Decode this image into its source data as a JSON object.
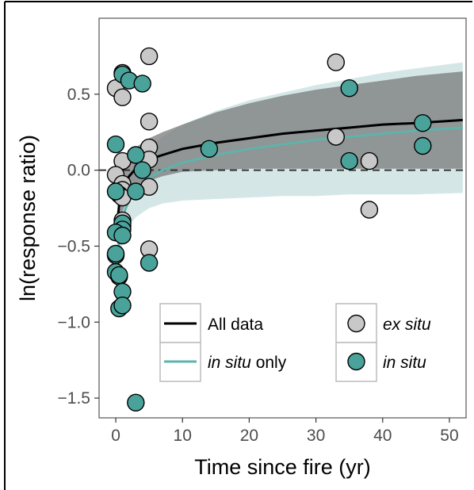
{
  "chart_data": {
    "type": "scatter",
    "xlabel": "Time since fire (yr)",
    "ylabel": "ln(response ratio)",
    "xlim": [
      -2.5,
      52.5
    ],
    "ylim": [
      -1.63,
      1.0
    ],
    "xticks": [
      0,
      10,
      20,
      30,
      40,
      50
    ],
    "yticks": [
      -1.5,
      -1.0,
      -0.5,
      0.0,
      0.5
    ],
    "xtick_labels": [
      "0",
      "10",
      "20",
      "30",
      "40",
      "50"
    ],
    "ytick_labels": [
      "−1.5",
      "−1.0",
      "−0.5",
      "0.0",
      "0.5"
    ],
    "grid": false,
    "reference_line": {
      "y": 0,
      "style": "dashed"
    },
    "colors": {
      "all_data_line": "#000000",
      "in_situ_line": "#5fb3ac",
      "all_data_ribbon": "#7a7a7a",
      "in_situ_ribbon": "#a9cfcd",
      "ex_situ_point": "#c8c8c8",
      "in_situ_point": "#4aa39a"
    },
    "fits": [
      {
        "name": "All data",
        "x": [
          0.3,
          0.5,
          0.7,
          1,
          1.5,
          2,
          3,
          4,
          5,
          7,
          10,
          15,
          20,
          25,
          30,
          35,
          40,
          45,
          52
        ],
        "y": [
          -0.31,
          -0.23,
          -0.18,
          -0.13,
          -0.08,
          -0.04,
          0.01,
          0.04,
          0.07,
          0.1,
          0.14,
          0.18,
          0.21,
          0.24,
          0.26,
          0.28,
          0.3,
          0.31,
          0.33
        ],
        "lower": [
          -0.45,
          -0.37,
          -0.32,
          -0.27,
          -0.22,
          -0.18,
          -0.13,
          -0.1,
          -0.07,
          -0.04,
          -0.01,
          0.0,
          0.01,
          0.01,
          0.01,
          0.01,
          0.01,
          0.01,
          0.01
        ],
        "upper": [
          -0.17,
          -0.09,
          -0.04,
          0.01,
          0.06,
          0.1,
          0.15,
          0.18,
          0.21,
          0.25,
          0.3,
          0.38,
          0.44,
          0.49,
          0.53,
          0.56,
          0.59,
          0.62,
          0.65
        ]
      },
      {
        "name": "in situ only",
        "x": [
          0.3,
          0.5,
          0.7,
          1,
          1.5,
          2,
          3,
          4,
          5,
          7,
          10,
          15,
          20,
          25,
          30,
          35,
          40,
          45,
          52
        ],
        "y": [
          -0.55,
          -0.45,
          -0.38,
          -0.31,
          -0.25,
          -0.2,
          -0.13,
          -0.09,
          -0.05,
          0.0,
          0.05,
          0.1,
          0.14,
          0.17,
          0.2,
          0.22,
          0.24,
          0.26,
          0.28
        ],
        "lower": [
          -0.72,
          -0.62,
          -0.55,
          -0.48,
          -0.42,
          -0.37,
          -0.31,
          -0.28,
          -0.25,
          -0.22,
          -0.2,
          -0.19,
          -0.18,
          -0.17,
          -0.17,
          -0.16,
          -0.16,
          -0.16,
          -0.15
        ],
        "upper": [
          -0.38,
          -0.28,
          -0.21,
          -0.14,
          -0.08,
          -0.03,
          0.05,
          0.1,
          0.15,
          0.22,
          0.3,
          0.39,
          0.46,
          0.51,
          0.56,
          0.6,
          0.64,
          0.67,
          0.71
        ]
      }
    ],
    "series": [
      {
        "name": "ex situ",
        "points": [
          [
            0,
            0.54
          ],
          [
            1,
            0.64
          ],
          [
            1,
            0.48
          ],
          [
            5,
            0.75
          ],
          [
            5,
            0.32
          ],
          [
            1,
            0.06
          ],
          [
            5,
            0.15
          ],
          [
            5,
            0.07
          ],
          [
            0,
            -0.03
          ],
          [
            1,
            -0.09
          ],
          [
            1,
            -0.13
          ],
          [
            0.5,
            -0.16
          ],
          [
            1,
            -0.18
          ],
          [
            5,
            -0.11
          ],
          [
            1,
            -0.33
          ],
          [
            1,
            -0.37
          ],
          [
            0,
            -0.56
          ],
          [
            5,
            -0.52
          ],
          [
            0.5,
            -0.7
          ],
          [
            33,
            0.71
          ],
          [
            33,
            0.22
          ],
          [
            38,
            0.06
          ],
          [
            38,
            -0.26
          ]
        ]
      },
      {
        "name": "in situ",
        "points": [
          [
            1,
            0.63
          ],
          [
            2,
            0.59
          ],
          [
            4,
            0.57
          ],
          [
            0,
            0.17
          ],
          [
            3,
            0.1
          ],
          [
            4,
            0.0
          ],
          [
            0,
            -0.14
          ],
          [
            3,
            -0.14
          ],
          [
            1,
            -0.35
          ],
          [
            1,
            -0.39
          ],
          [
            0,
            -0.41
          ],
          [
            1,
            -0.43
          ],
          [
            0,
            -0.55
          ],
          [
            0,
            -0.67
          ],
          [
            0.5,
            -0.69
          ],
          [
            1,
            -0.8
          ],
          [
            5,
            -0.61
          ],
          [
            0.5,
            -0.91
          ],
          [
            1,
            -0.89
          ],
          [
            3,
            -1.53
          ],
          [
            14,
            0.14
          ],
          [
            35,
            0.54
          ],
          [
            35,
            0.06
          ],
          [
            46,
            0.31
          ],
          [
            46,
            0.16
          ]
        ]
      }
    ],
    "legend": {
      "lines": [
        {
          "label": "All data"
        },
        {
          "label_italic": "in situ",
          "label_rest": " only"
        }
      ],
      "points": [
        {
          "label": "ex situ"
        },
        {
          "label": "in situ"
        }
      ],
      "placement": "bottom-right"
    }
  }
}
